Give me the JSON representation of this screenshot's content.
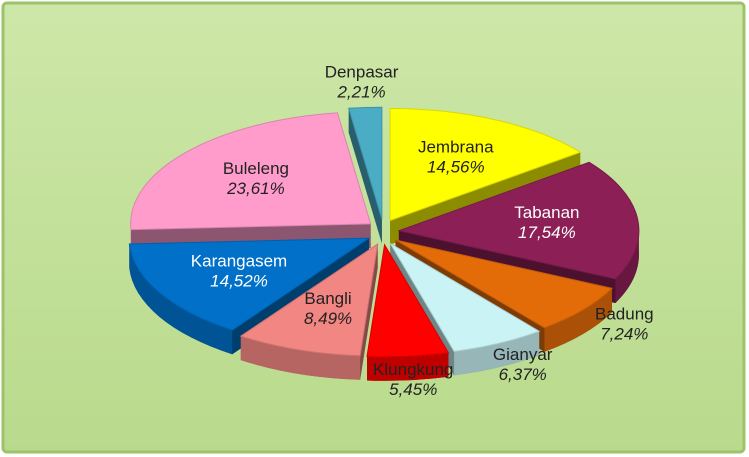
{
  "chart_data": {
    "type": "pie",
    "categories": [
      "Jembrana",
      "Tabanan",
      "Badung",
      "Gianyar",
      "Klungkung",
      "Bangli",
      "Karangasem",
      "Buleleng",
      "Denpasar"
    ],
    "values": [
      14.56,
      17.54,
      7.24,
      6.37,
      5.45,
      8.49,
      14.52,
      23.61,
      2.21
    ],
    "value_labels": [
      "14,56%",
      "17,54%",
      "7,24%",
      "6,37%",
      "5,45%",
      "8,49%",
      "14,52%",
      "23,61%",
      "2,21%"
    ],
    "colors": [
      "#ffff00",
      "#8b1f56",
      "#e36c09",
      "#c9f3f5",
      "#ff0000",
      "#f28682",
      "#0070c8",
      "#ff9ccc",
      "#4bacc6"
    ]
  }
}
